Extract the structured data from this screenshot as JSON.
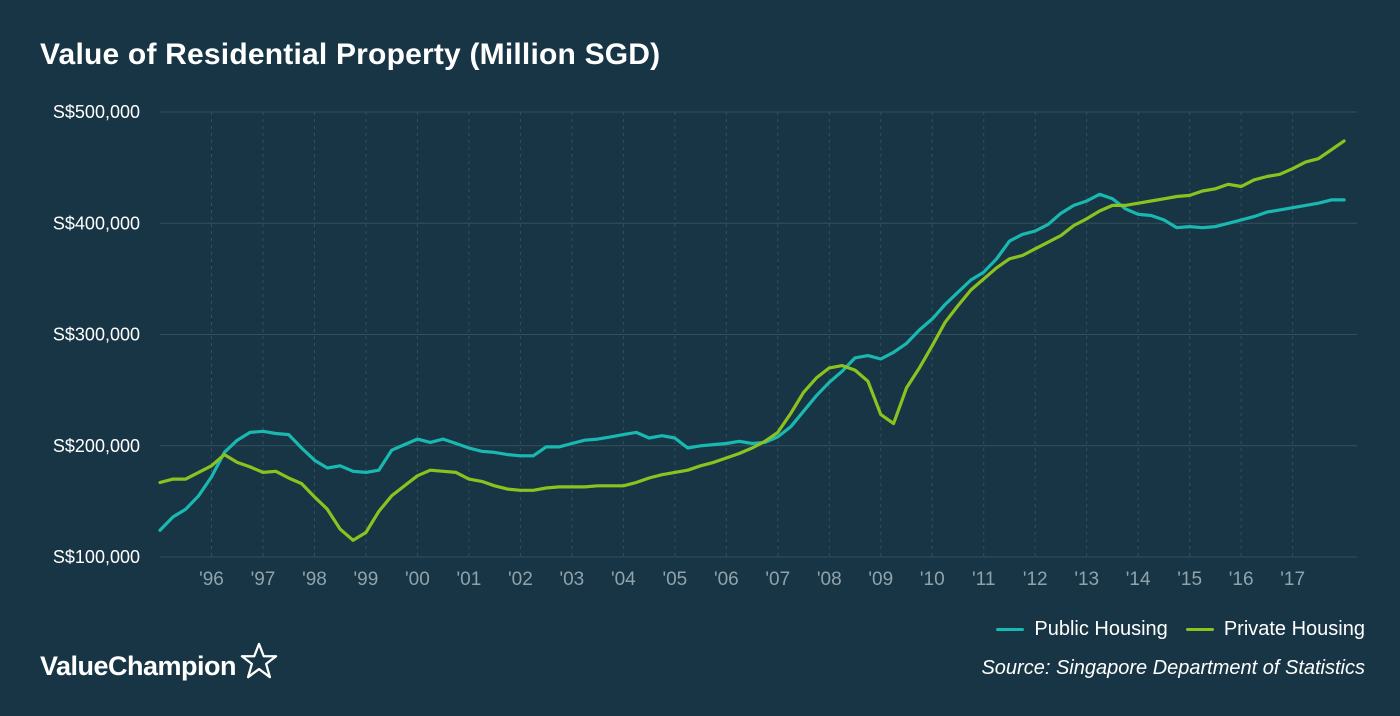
{
  "title": "Value of Residential Property (Million SGD)",
  "legend": {
    "public": "Public Housing",
    "private": "Private Housing"
  },
  "source": "Source: Singapore Department of Statistics",
  "brand": {
    "name": "ValueChampion",
    "icon": "star-outline-icon"
  },
  "colors": {
    "background": "#173544",
    "public": "#19b8b0",
    "private": "#8cc21f",
    "grid": "#35505d",
    "tick_muted": "#8fa3ad"
  },
  "chart_data": {
    "type": "line",
    "title": "Value of Residential Property (Million SGD)",
    "xlabel": "",
    "ylabel": "",
    "grid": true,
    "legend_position": "bottom-right",
    "ylim": [
      100000,
      500000
    ],
    "xlim": [
      1995.0,
      2018.25
    ],
    "y_tick_values": [
      100000,
      200000,
      300000,
      400000,
      500000
    ],
    "y_tick_labels": [
      "S$100,000",
      "S$200,000",
      "S$300,000",
      "S$400,000",
      "S$500,000"
    ],
    "x_tick_values": [
      1996,
      1997,
      1998,
      1999,
      2000,
      2001,
      2002,
      2003,
      2004,
      2005,
      2006,
      2007,
      2008,
      2009,
      2010,
      2011,
      2012,
      2013,
      2014,
      2015,
      2016,
      2017
    ],
    "x_tick_labels": [
      "'96",
      "'97",
      "'98",
      "'99",
      "'00",
      "'01",
      "'02",
      "'03",
      "'04",
      "'05",
      "'06",
      "'07",
      "'08",
      "'09",
      "'10",
      "'11",
      "'12",
      "'13",
      "'14",
      "'15",
      "'16",
      "'17"
    ],
    "series": [
      {
        "name": "Public Housing",
        "x": [
          1995.0,
          1995.25,
          1995.5,
          1995.75,
          1996.0,
          1996.25,
          1996.5,
          1996.75,
          1997.0,
          1997.25,
          1997.5,
          1997.75,
          1998.0,
          1998.25,
          1998.5,
          1998.75,
          1999.0,
          1999.25,
          1999.5,
          1999.75,
          2000.0,
          2000.25,
          2000.5,
          2000.75,
          2001.0,
          2001.25,
          2001.5,
          2001.75,
          2002.0,
          2002.25,
          2002.5,
          2002.75,
          2003.0,
          2003.25,
          2003.5,
          2003.75,
          2004.0,
          2004.25,
          2004.5,
          2004.75,
          2005.0,
          2005.25,
          2005.5,
          2005.75,
          2006.0,
          2006.25,
          2006.5,
          2006.75,
          2007.0,
          2007.25,
          2007.5,
          2007.75,
          2008.0,
          2008.25,
          2008.5,
          2008.75,
          2009.0,
          2009.25,
          2009.5,
          2009.75,
          2010.0,
          2010.25,
          2010.5,
          2010.75,
          2011.0,
          2011.25,
          2011.5,
          2011.75,
          2012.0,
          2012.25,
          2012.5,
          2012.75,
          2013.0,
          2013.25,
          2013.5,
          2013.75,
          2014.0,
          2014.25,
          2014.5,
          2014.75,
          2015.0,
          2015.25,
          2015.5,
          2015.75,
          2016.0,
          2016.25,
          2016.5,
          2016.75,
          2017.0,
          2017.25,
          2017.5,
          2017.75,
          2018.0
        ],
        "y": [
          124000,
          136000,
          143000,
          155000,
          172000,
          194000,
          205000,
          212000,
          213000,
          211000,
          210000,
          198000,
          187000,
          180000,
          182000,
          177000,
          176000,
          178000,
          196000,
          201000,
          206000,
          203000,
          206000,
          202000,
          198000,
          195000,
          194000,
          192000,
          191000,
          191000,
          199000,
          199000,
          202000,
          205000,
          206000,
          208000,
          210000,
          212000,
          207000,
          209000,
          207000,
          198000,
          200000,
          201000,
          202000,
          204000,
          202000,
          203000,
          208000,
          217000,
          231000,
          245000,
          257000,
          267000,
          279000,
          281000,
          278000,
          284000,
          292000,
          304000,
          314000,
          327000,
          338000,
          349000,
          356000,
          368000,
          384000,
          390000,
          393000,
          399000,
          409000,
          416000,
          420000,
          426000,
          422000,
          413000,
          408000,
          407000,
          403000,
          396000,
          397000,
          396000,
          397000,
          400000,
          403000,
          406000,
          410000,
          412000,
          414000,
          416000,
          418000,
          421000,
          421000
        ]
      },
      {
        "name": "Private Housing",
        "x": [
          1995.0,
          1995.25,
          1995.5,
          1995.75,
          1996.0,
          1996.25,
          1996.5,
          1996.75,
          1997.0,
          1997.25,
          1997.5,
          1997.75,
          1998.0,
          1998.25,
          1998.5,
          1998.75,
          1999.0,
          1999.25,
          1999.5,
          1999.75,
          2000.0,
          2000.25,
          2000.5,
          2000.75,
          2001.0,
          2001.25,
          2001.5,
          2001.75,
          2002.0,
          2002.25,
          2002.5,
          2002.75,
          2003.0,
          2003.25,
          2003.5,
          2003.75,
          2004.0,
          2004.25,
          2004.5,
          2004.75,
          2005.0,
          2005.25,
          2005.5,
          2005.75,
          2006.0,
          2006.25,
          2006.5,
          2006.75,
          2007.0,
          2007.25,
          2007.5,
          2007.75,
          2008.0,
          2008.25,
          2008.5,
          2008.75,
          2009.0,
          2009.25,
          2009.5,
          2009.75,
          2010.0,
          2010.25,
          2010.5,
          2010.75,
          2011.0,
          2011.25,
          2011.5,
          2011.75,
          2012.0,
          2012.25,
          2012.5,
          2012.75,
          2013.0,
          2013.25,
          2013.5,
          2013.75,
          2014.0,
          2014.25,
          2014.5,
          2014.75,
          2015.0,
          2015.25,
          2015.5,
          2015.75,
          2016.0,
          2016.25,
          2016.5,
          2016.75,
          2017.0,
          2017.25,
          2017.5,
          2017.75,
          2018.0
        ],
        "y": [
          167000,
          170000,
          170000,
          176000,
          182000,
          192000,
          185000,
          181000,
          176000,
          177000,
          171000,
          166000,
          154000,
          143000,
          125000,
          115000,
          122000,
          141000,
          155000,
          164000,
          173000,
          178000,
          177000,
          176000,
          170000,
          168000,
          164000,
          161000,
          160000,
          160000,
          162000,
          163000,
          163000,
          163000,
          164000,
          164000,
          164000,
          167000,
          171000,
          174000,
          176000,
          178000,
          182000,
          185000,
          189000,
          193000,
          198000,
          204000,
          212000,
          229000,
          248000,
          261000,
          270000,
          272000,
          268000,
          258000,
          228000,
          220000,
          252000,
          270000,
          290000,
          311000,
          326000,
          340000,
          350000,
          360000,
          368000,
          371000,
          377000,
          383000,
          389000,
          398000,
          404000,
          411000,
          416000,
          416000,
          418000,
          420000,
          422000,
          424000,
          425000,
          429000,
          431000,
          435000,
          433000,
          439000,
          442000,
          444000,
          449000,
          455000,
          458000,
          466000,
          474000
        ]
      }
    ]
  }
}
